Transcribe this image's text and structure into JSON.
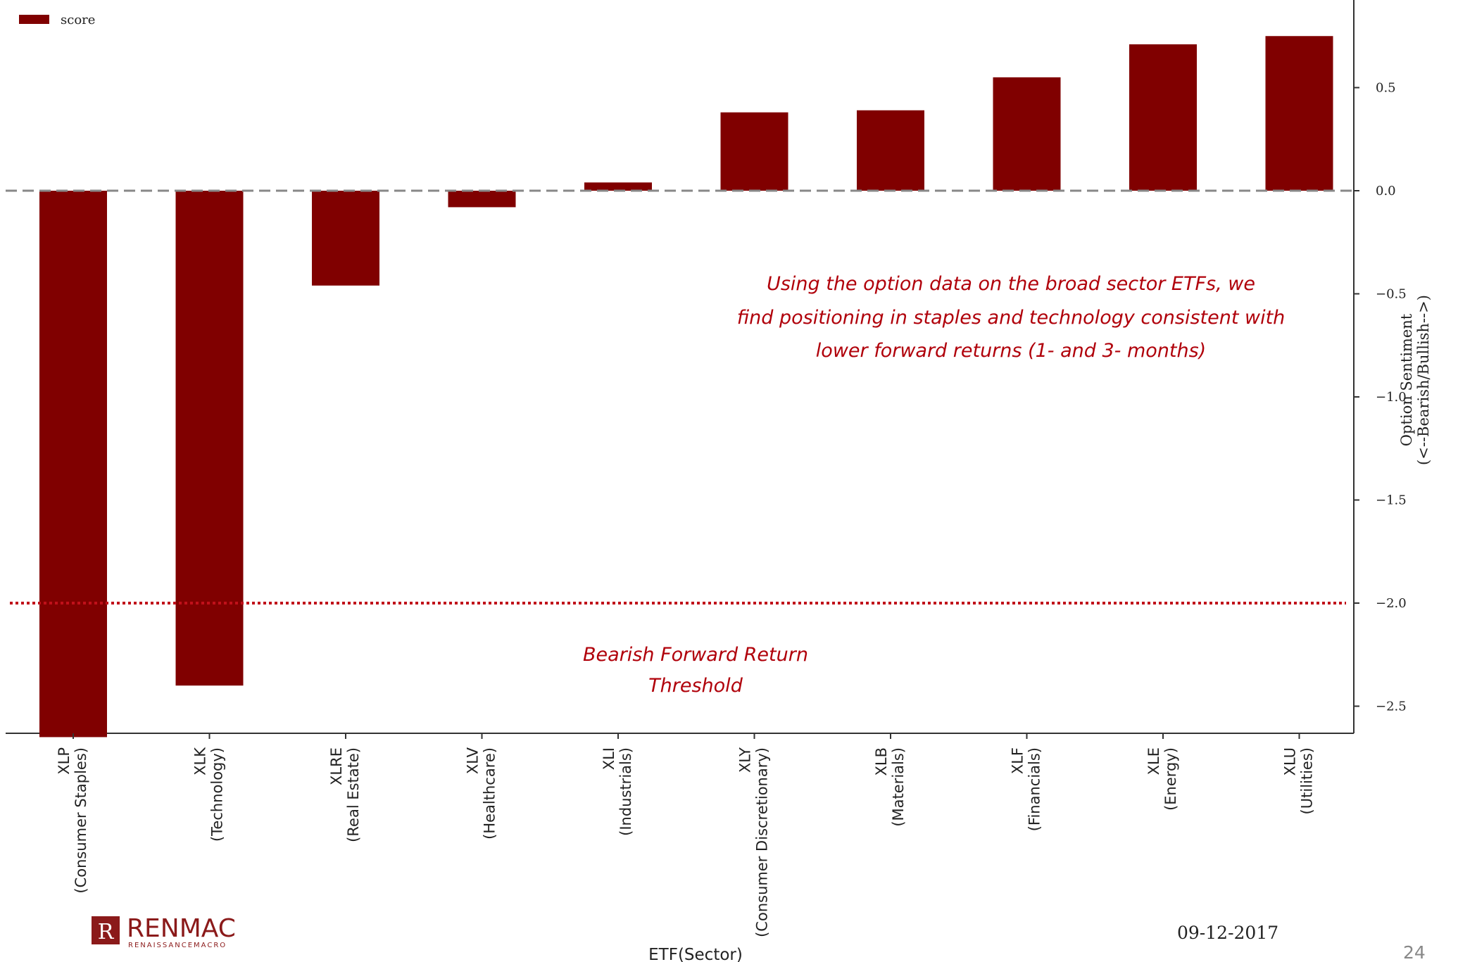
{
  "chart_data": {
    "type": "bar",
    "categories": [
      [
        "XLP",
        "(Consumer Staples)"
      ],
      [
        "XLK",
        "(Technology)"
      ],
      [
        "XLRE",
        "(Real Estate)"
      ],
      [
        "XLV",
        "(Healthcare)"
      ],
      [
        "XLI",
        "(Industrials)"
      ],
      [
        "XLY",
        "(Consumer Discretionary)"
      ],
      [
        "XLB",
        "(Materials)"
      ],
      [
        "XLF",
        "(Financials)"
      ],
      [
        "XLE",
        "(Energy)"
      ],
      [
        "XLU",
        "(Utilities)"
      ]
    ],
    "series": [
      {
        "name": "score",
        "values": [
          -2.65,
          -2.4,
          -0.46,
          -0.08,
          0.04,
          0.38,
          0.39,
          0.55,
          0.71,
          0.75
        ],
        "color": "#800000"
      }
    ],
    "ylim": [
      -2.65,
      0.9
    ],
    "yticks": [
      0.5,
      0.0,
      -0.5,
      -1.0,
      -1.5,
      -2.0,
      -2.5
    ],
    "ytick_labels": [
      "0.5",
      "0.0",
      "−0.5",
      "−1.0",
      "−1.5",
      "−2.0",
      "−2.5"
    ],
    "xlabel": "ETF(Sector)",
    "ylabel": [
      "Option Sentiment",
      "(<--Bearish/Bullish-->)"
    ],
    "legend": {
      "position": "top-left",
      "label": "score"
    },
    "zero_line": {
      "value": 0.0,
      "style": "dashed",
      "color": "#888888"
    },
    "threshold_line": {
      "value": -2.0,
      "style": "dotted",
      "color": "#c0101a"
    },
    "annotation_main": [
      "Using the option data on the broad sector ETFs, we",
      "find positioning in staples and technology consistent with",
      "lower forward returns (1- and 3- months)"
    ],
    "annotation_threshold": [
      "Bearish Forward Return",
      "Threshold"
    ]
  },
  "footer": {
    "date": "09-12-2017",
    "page_number": "24",
    "logo_text": "RENMAC",
    "logo_subtext": "RENAISSANCEMACRO"
  }
}
